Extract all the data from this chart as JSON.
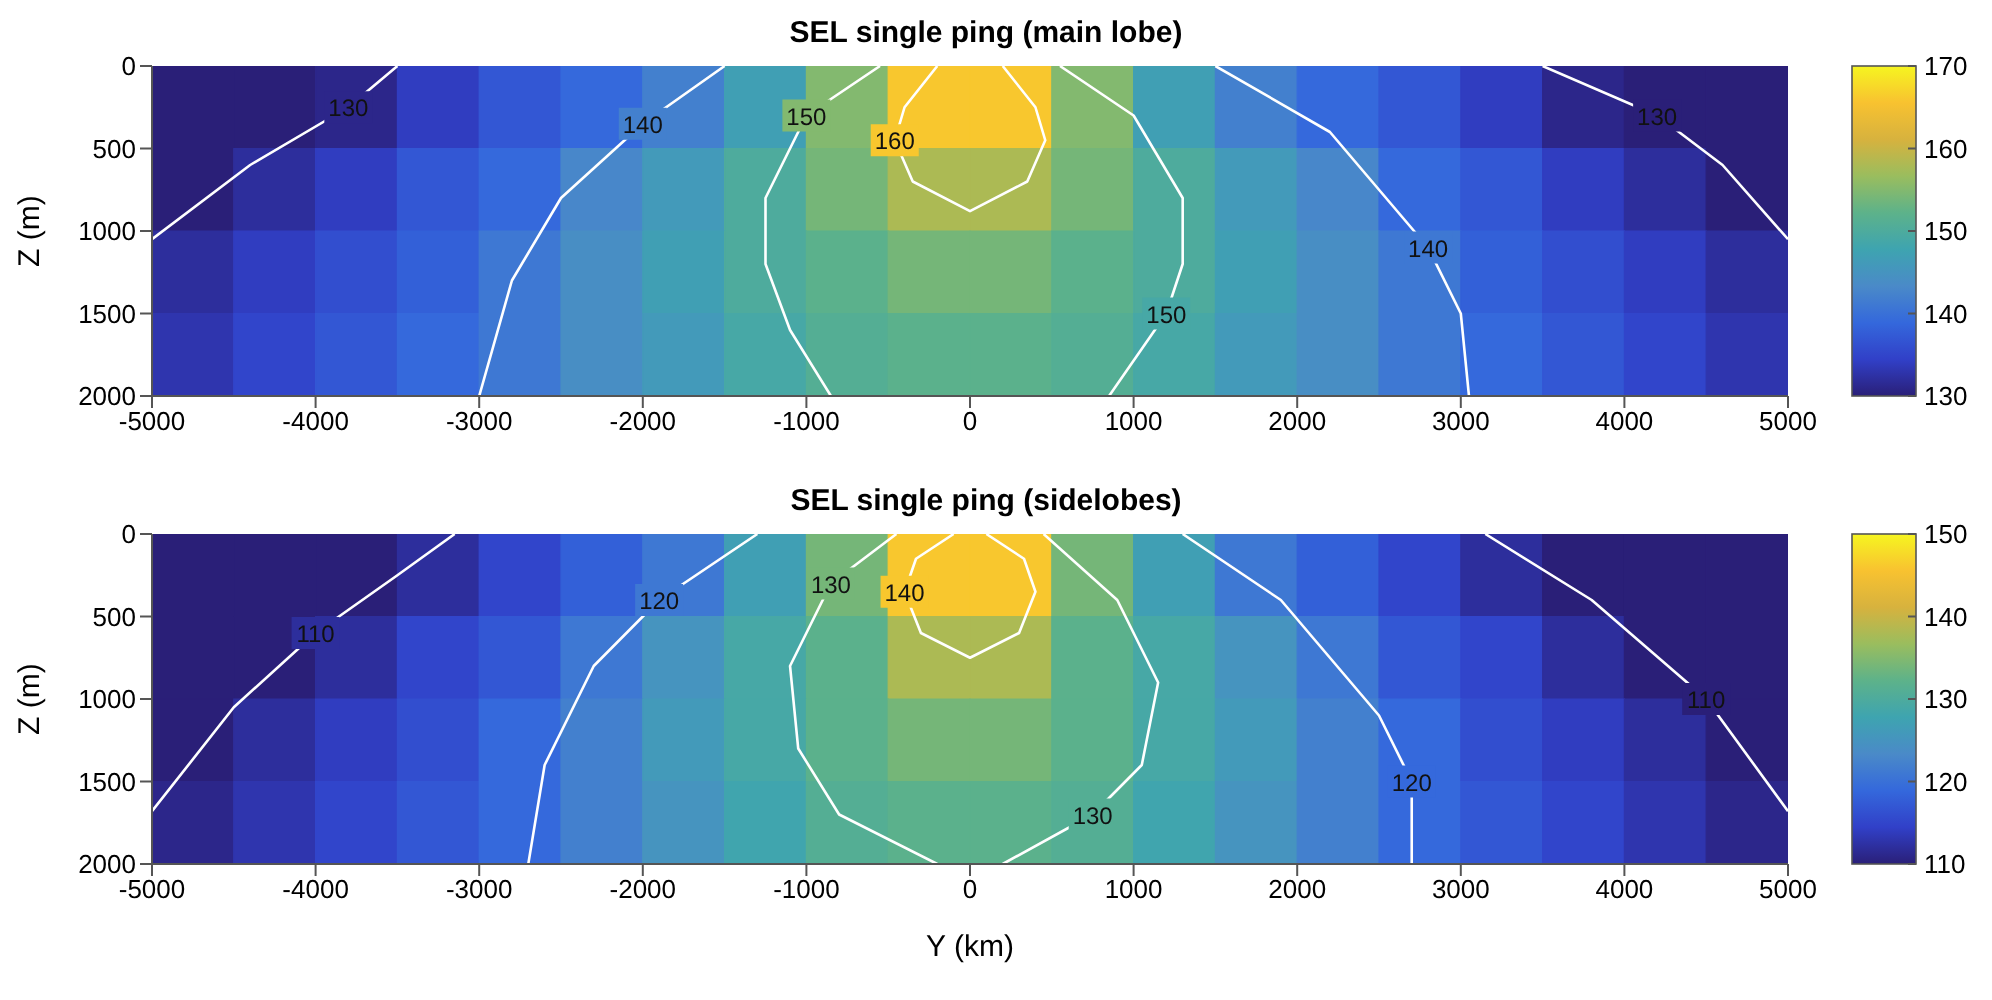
{
  "chart_data": [
    {
      "type": "heatmap",
      "title": "SEL single ping (main lobe)",
      "ylabel": "Z (m)",
      "xlim": [
        -5000,
        5000
      ],
      "xticks": [
        -5000,
        -4000,
        -3000,
        -2000,
        -1000,
        0,
        1000,
        2000,
        3000,
        4000,
        5000
      ],
      "ylim": [
        2000,
        0
      ],
      "yticks": [
        0,
        500,
        1000,
        1500,
        2000
      ],
      "clim": [
        130,
        170
      ],
      "cticks": [
        130,
        140,
        150,
        160,
        170
      ],
      "cells": [
        [
          130,
          130,
          131,
          134,
          137,
          139,
          142,
          147,
          155,
          166,
          166,
          155,
          147,
          142,
          139,
          137,
          134,
          131,
          130,
          130
        ],
        [
          130,
          132,
          134,
          137,
          139,
          143,
          146,
          150,
          154,
          158,
          158,
          154,
          150,
          146,
          143,
          139,
          137,
          134,
          132,
          130
        ],
        [
          132,
          134,
          136,
          138,
          141,
          144,
          147,
          150,
          152,
          154,
          154,
          152,
          150,
          147,
          144,
          141,
          138,
          136,
          134,
          132
        ],
        [
          133,
          135,
          137,
          139,
          141,
          144,
          146,
          149,
          151,
          152,
          152,
          151,
          149,
          146,
          144,
          141,
          139,
          137,
          135,
          133
        ]
      ],
      "series": [
        {
          "type": "line",
          "color": "#ffffff",
          "x": [
            -5000,
            -4400,
            -3800,
            -3500
          ],
          "values": [
            1050,
            600,
            250,
            0
          ]
        },
        {
          "type": "line",
          "color": "#ffffff",
          "x": [
            3500,
            4200,
            4600,
            5000
          ],
          "values": [
            0,
            300,
            600,
            1050
          ]
        },
        {
          "type": "line",
          "color": "#ffffff",
          "x": [
            -1500,
            -2000,
            -2500,
            -2800,
            -3000
          ],
          "values": [
            0,
            350,
            800,
            1300,
            2000
          ]
        },
        {
          "type": "line",
          "color": "#ffffff",
          "x": [
            1500,
            2200,
            2800,
            3000,
            3050
          ],
          "values": [
            0,
            400,
            1100,
            1500,
            2000
          ]
        },
        {
          "type": "line",
          "color": "#ffffff",
          "x": [
            -550,
            -1000,
            -1250,
            -1250,
            -1100,
            -850
          ],
          "values": [
            0,
            300,
            800,
            1200,
            1600,
            2000
          ]
        },
        {
          "type": "line",
          "color": "#ffffff",
          "x": [
            550,
            1000,
            1300,
            1300,
            1200,
            850
          ],
          "values": [
            0,
            300,
            800,
            1200,
            1500,
            2000
          ]
        },
        {
          "type": "line",
          "color": "#ffffff",
          "x": [
            -200,
            -400,
            -460,
            -350,
            0,
            350,
            460,
            400,
            200
          ],
          "values": [
            0,
            250,
            450,
            700,
            880,
            700,
            450,
            250,
            0
          ]
        }
      ],
      "annotations": [
        {
          "text": "130",
          "x": -3800,
          "y": 250
        },
        {
          "text": "130",
          "x": 4200,
          "y": 300
        },
        {
          "text": "140",
          "x": -2000,
          "y": 350
        },
        {
          "text": "140",
          "x": 2800,
          "y": 1100
        },
        {
          "text": "150",
          "x": -1000,
          "y": 300
        },
        {
          "text": "150",
          "x": 1200,
          "y": 1500
        },
        {
          "text": "160",
          "x": -460,
          "y": 450
        }
      ]
    },
    {
      "type": "heatmap",
      "title": "SEL single ping (sidelobes)",
      "xlabel": "Y (km)",
      "ylabel": "Z (m)",
      "xlim": [
        -5000,
        5000
      ],
      "xticks": [
        -5000,
        -4000,
        -3000,
        -2000,
        -1000,
        0,
        1000,
        2000,
        3000,
        4000,
        5000
      ],
      "ylim": [
        2000,
        0
      ],
      "yticks": [
        0,
        500,
        1000,
        1500,
        2000
      ],
      "clim": [
        110,
        150
      ],
      "cticks": [
        110,
        120,
        130,
        140,
        150
      ],
      "cells": [
        [
          110,
          110,
          110,
          112,
          115,
          118,
          121,
          127,
          134,
          146,
          146,
          134,
          127,
          121,
          118,
          115,
          112,
          110,
          110,
          110
        ],
        [
          110,
          110,
          112,
          115,
          117,
          121,
          125,
          129,
          132,
          138,
          138,
          132,
          129,
          125,
          121,
          117,
          115,
          112,
          110,
          110
        ],
        [
          110,
          112,
          114,
          116,
          119,
          122,
          126,
          129,
          132,
          134,
          134,
          132,
          129,
          126,
          122,
          119,
          116,
          114,
          112,
          110
        ],
        [
          111,
          113,
          115,
          117,
          119,
          122,
          125,
          128,
          131,
          132,
          132,
          131,
          128,
          125,
          122,
          119,
          117,
          115,
          113,
          111
        ]
      ],
      "series": [
        {
          "type": "line",
          "color": "#ffffff",
          "x": [
            -5000,
            -4500,
            -4000,
            -3500,
            -3150
          ],
          "values": [
            1680,
            1050,
            600,
            250,
            0
          ]
        },
        {
          "type": "line",
          "color": "#ffffff",
          "x": [
            3150,
            3800,
            4500,
            5000
          ],
          "values": [
            0,
            400,
            1000,
            1680
          ]
        },
        {
          "type": "line",
          "color": "#ffffff",
          "x": [
            -1300,
            -1900,
            -2300,
            -2600,
            -2700
          ],
          "values": [
            0,
            400,
            800,
            1400,
            2000
          ]
        },
        {
          "type": "line",
          "color": "#ffffff",
          "x": [
            1300,
            1900,
            2500,
            2700,
            2700
          ],
          "values": [
            0,
            400,
            1100,
            1500,
            2000
          ]
        },
        {
          "type": "line",
          "color": "#ffffff",
          "x": [
            -450,
            -850,
            -1100,
            -1050,
            -800,
            -200
          ],
          "values": [
            0,
            300,
            800,
            1300,
            1700,
            2000
          ]
        },
        {
          "type": "line",
          "color": "#ffffff",
          "x": [
            450,
            900,
            1150,
            1050,
            750,
            200
          ],
          "values": [
            0,
            400,
            900,
            1400,
            1700,
            2000
          ]
        },
        {
          "type": "line",
          "color": "#ffffff",
          "x": [
            -100,
            -330,
            -400,
            -300,
            0,
            300,
            400,
            330,
            100
          ],
          "values": [
            0,
            150,
            350,
            600,
            750,
            600,
            350,
            150,
            0
          ]
        }
      ],
      "annotations": [
        {
          "text": "110",
          "x": -4000,
          "y": 600
        },
        {
          "text": "110",
          "x": 4500,
          "y": 1000
        },
        {
          "text": "120",
          "x": -1900,
          "y": 400
        },
        {
          "text": "120",
          "x": 2700,
          "y": 1500
        },
        {
          "text": "130",
          "x": -850,
          "y": 300
        },
        {
          "text": "130",
          "x": 750,
          "y": 1700
        },
        {
          "text": "140",
          "x": -400,
          "y": 350
        }
      ]
    }
  ]
}
